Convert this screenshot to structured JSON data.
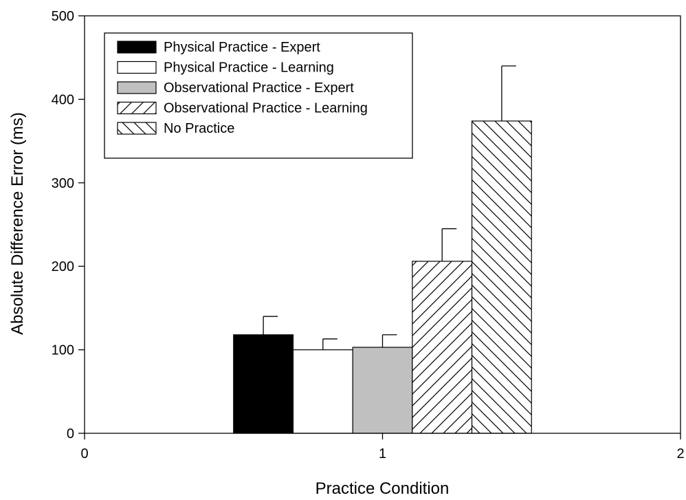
{
  "chart_data": {
    "type": "bar",
    "xlabel": "Practice Condition",
    "ylabel": "Absolute Difference Error (ms)",
    "xlim": [
      0,
      2
    ],
    "ylim": [
      0,
      500
    ],
    "x_ticks": [
      "0",
      "1",
      "2"
    ],
    "y_ticks": [
      "0",
      "100",
      "200",
      "300",
      "400",
      "500"
    ],
    "legend_position": "top-left",
    "grid": false,
    "series": [
      {
        "name": "Physical Practice - Expert",
        "x": 1,
        "value": 118,
        "error": 22,
        "fill": "#000000",
        "pattern": "solid"
      },
      {
        "name": "Physical Practice - Learning",
        "x": 1,
        "value": 100,
        "error": 13,
        "fill": "#ffffff",
        "pattern": "solid"
      },
      {
        "name": "Observational Practice - Expert",
        "x": 1,
        "value": 103,
        "error": 15,
        "fill": "#c0c0c0",
        "pattern": "solid"
      },
      {
        "name": "Observational Practice - Learning",
        "x": 1,
        "value": 206,
        "error": 39,
        "fill": "#ffffff",
        "pattern": "forward-diagonal"
      },
      {
        "name": "No Practice",
        "x": 1,
        "value": 374,
        "error": 66,
        "fill": "#ffffff",
        "pattern": "backward-diagonal"
      }
    ]
  }
}
